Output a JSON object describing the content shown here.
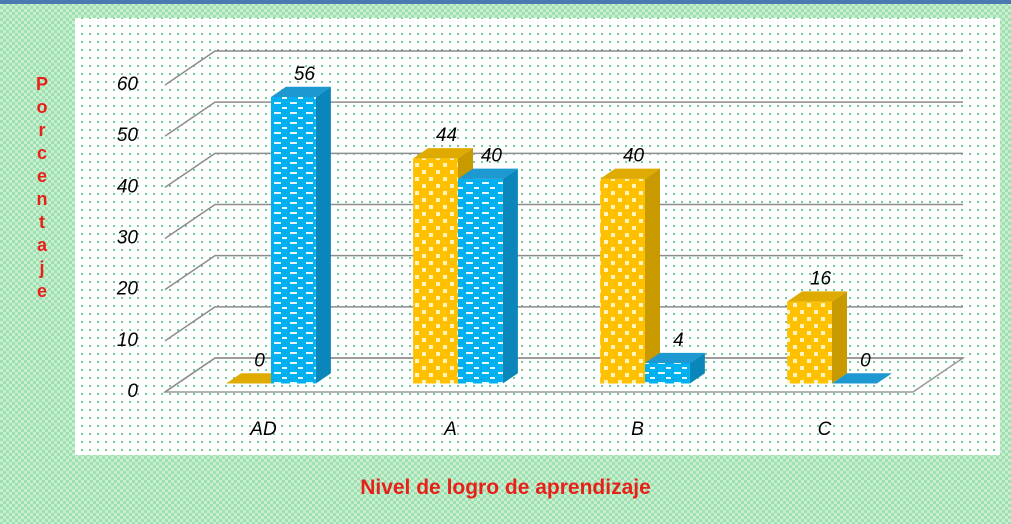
{
  "chart_data": {
    "type": "bar3d",
    "x_label": "Nivel de logro de aprendizaje",
    "y_label": "Porcentaje",
    "categories": [
      "AD",
      "A",
      "B",
      "C"
    ],
    "series": [
      {
        "color": "#ffc000",
        "values": [
          0,
          44,
          40,
          16
        ]
      },
      {
        "color": "#00b0f0",
        "values": [
          56,
          40,
          4,
          0
        ]
      }
    ],
    "ylim": [
      0,
      60
    ],
    "yticks": [
      0,
      10,
      20,
      30,
      40,
      50,
      60
    ],
    "grid": true
  }
}
